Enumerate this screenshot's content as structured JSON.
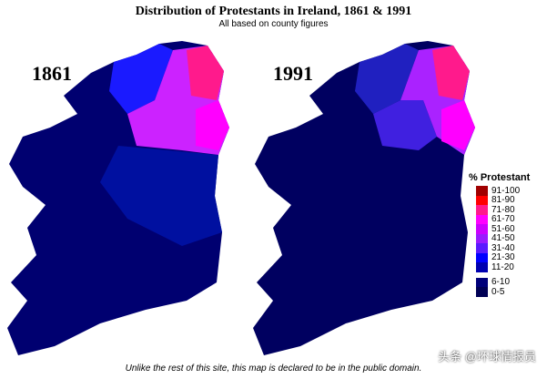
{
  "title": "Distribution of Protestants in Ireland, 1861 & 1991",
  "subtitle": "All based on county figures",
  "maps": [
    {
      "year": "1861"
    },
    {
      "year": "1991"
    }
  ],
  "legend": {
    "title": "% Protestant",
    "items": [
      {
        "label": "91-100",
        "color": "#a00000"
      },
      {
        "label": "81-90",
        "color": "#ff0000"
      },
      {
        "label": "71-80",
        "color": "#ff1a8c"
      },
      {
        "label": "61-70",
        "color": "#ff00ff"
      },
      {
        "label": "51-60",
        "color": "#cc00ff"
      },
      {
        "label": "41-50",
        "color": "#9a1aff"
      },
      {
        "label": "31-40",
        "color": "#5a1aff"
      },
      {
        "label": "21-30",
        "color": "#0000ff"
      },
      {
        "label": "11-20",
        "color": "#0000b0"
      }
    ],
    "extra": [
      {
        "label": "6-10",
        "color": "#00007a"
      },
      {
        "label": "0-5",
        "color": "#000055"
      }
    ]
  },
  "footer": "Unlike the rest of this site, this map is declared to be in the public domain.",
  "watermark": "头条 @环球情报员"
}
